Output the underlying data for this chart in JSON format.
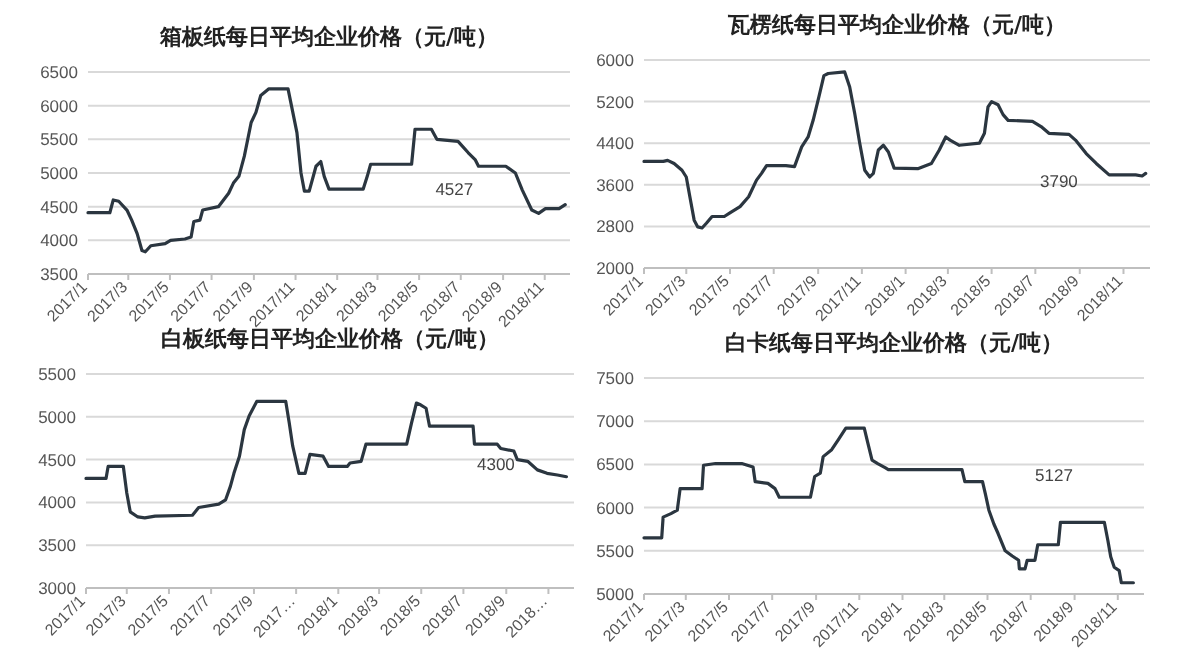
{
  "chart_data": [
    {
      "type": "line",
      "title": "箱板纸每日平均企业价格（元/吨）",
      "color": "#2b3640",
      "grid": "y",
      "ylim": [
        3500,
        6500
      ],
      "yticks": [
        3500,
        4000,
        4500,
        5000,
        5500,
        6000,
        6500
      ],
      "xlim": [
        "2017-01-01",
        "2018-12-08"
      ],
      "xticks": [
        {
          "value": "2017-01-01",
          "label": "2017/1"
        },
        {
          "value": "2017-03-01",
          "label": "2017/3"
        },
        {
          "value": "2017-05-01",
          "label": "2017/5"
        },
        {
          "value": "2017-07-01",
          "label": "2017/7"
        },
        {
          "value": "2017-09-01",
          "label": "2017/9"
        },
        {
          "value": "2017-11-01",
          "label": "2017/11"
        },
        {
          "value": "2018-01-01",
          "label": "2018/1"
        },
        {
          "value": "2018-03-01",
          "label": "2018/3"
        },
        {
          "value": "2018-05-01",
          "label": "2018/5"
        },
        {
          "value": "2018-07-01",
          "label": "2018/7"
        },
        {
          "value": "2018-09-01",
          "label": "2018/9"
        },
        {
          "value": "2018-11-01",
          "label": "2018/11"
        }
      ],
      "x": [
        "2017-01-01",
        "2017-02-02",
        "2017-02-07",
        "2017-02-15",
        "2017-02-27",
        "2017-03-06",
        "2017-03-14",
        "2017-03-21",
        "2017-03-26",
        "2017-04-03",
        "2017-04-24",
        "2017-05-02",
        "2017-05-23",
        "2017-06-01",
        "2017-06-05",
        "2017-06-14",
        "2017-06-18",
        "2017-07-11",
        "2017-07-26",
        "2017-08-02",
        "2017-08-10",
        "2017-08-18",
        "2017-08-28",
        "2017-09-04",
        "2017-09-11",
        "2017-09-23",
        "2017-10-21",
        "2017-10-28",
        "2017-11-03",
        "2017-11-09",
        "2017-11-14",
        "2017-11-21",
        "2017-12-01",
        "2017-12-08",
        "2017-12-13",
        "2017-12-20",
        "2018-02-08",
        "2018-02-14",
        "2018-02-19",
        "2018-04-20",
        "2018-04-25",
        "2018-05-19",
        "2018-05-27",
        "2018-06-27",
        "2018-07-12",
        "2018-07-22",
        "2018-07-27",
        "2018-09-05",
        "2018-09-19",
        "2018-09-29",
        "2018-10-13",
        "2018-10-23",
        "2018-11-02",
        "2018-11-22",
        "2018-12-01"
      ],
      "values": [
        4410,
        4410,
        4600,
        4580,
        4450,
        4300,
        4100,
        3850,
        3830,
        3920,
        3950,
        4000,
        4020,
        4050,
        4280,
        4300,
        4450,
        4500,
        4700,
        4850,
        4950,
        5250,
        5750,
        5900,
        6150,
        6250,
        6250,
        5900,
        5600,
        5000,
        4730,
        4730,
        5100,
        5170,
        4950,
        4760,
        4760,
        4950,
        5130,
        5130,
        5650,
        5650,
        5500,
        5470,
        5300,
        5200,
        5100,
        5100,
        5000,
        4750,
        4450,
        4400,
        4470,
        4470,
        4530
      ],
      "annotations": [
        "4527"
      ]
    },
    {
      "type": "line",
      "title": "瓦楞纸每日平均企业价格（元/吨）",
      "color": "#2b3640",
      "grid": "y",
      "ylim": [
        2000,
        6000
      ],
      "yticks": [
        2000,
        2800,
        3600,
        4400,
        5200,
        6000
      ],
      "xlim": [
        "2017-01-01",
        "2018-12-08"
      ],
      "xticks": [
        {
          "value": "2017-01-01",
          "label": "2017/1"
        },
        {
          "value": "2017-03-01",
          "label": "2017/3"
        },
        {
          "value": "2017-05-01",
          "label": "2017/5"
        },
        {
          "value": "2017-07-01",
          "label": "2017/7"
        },
        {
          "value": "2017-09-01",
          "label": "2017/9"
        },
        {
          "value": "2017-11-01",
          "label": "2017/11"
        },
        {
          "value": "2018-01-01",
          "label": "2018/1"
        },
        {
          "value": "2018-03-01",
          "label": "2018/3"
        },
        {
          "value": "2018-05-01",
          "label": "2018/5"
        },
        {
          "value": "2018-07-01",
          "label": "2018/7"
        },
        {
          "value": "2018-09-01",
          "label": "2018/9"
        },
        {
          "value": "2018-11-01",
          "label": "2018/11"
        }
      ],
      "x": [
        "2017-01-01",
        "2017-01-28",
        "2017-02-03",
        "2017-02-12",
        "2017-02-23",
        "2017-03-01",
        "2017-03-06",
        "2017-03-12",
        "2017-03-17",
        "2017-03-23",
        "2017-03-29",
        "2017-04-06",
        "2017-04-23",
        "2017-05-02",
        "2017-05-15",
        "2017-05-27",
        "2017-06-07",
        "2017-06-14",
        "2017-06-21",
        "2017-07-18",
        "2017-07-30",
        "2017-08-09",
        "2017-08-18",
        "2017-08-25",
        "2017-09-02",
        "2017-09-09",
        "2017-09-15",
        "2017-10-08",
        "2017-10-15",
        "2017-10-22",
        "2017-10-29",
        "2017-11-05",
        "2017-11-12",
        "2017-11-17",
        "2017-11-24",
        "2017-12-01",
        "2017-12-08",
        "2017-12-16",
        "2018-01-18",
        "2018-02-06",
        "2018-02-17",
        "2018-02-26",
        "2018-03-04",
        "2018-03-17",
        "2018-04-14",
        "2018-04-21",
        "2018-04-26",
        "2018-05-01",
        "2018-05-10",
        "2018-05-17",
        "2018-05-24",
        "2018-06-27",
        "2018-07-09",
        "2018-07-20",
        "2018-08-17",
        "2018-08-26",
        "2018-09-10",
        "2018-09-24",
        "2018-10-12",
        "2018-11-18",
        "2018-11-27",
        "2018-12-02"
      ],
      "values": [
        4050,
        4050,
        4070,
        4010,
        3880,
        3750,
        3370,
        2920,
        2790,
        2770,
        2860,
        2990,
        2990,
        3070,
        3180,
        3370,
        3690,
        3820,
        3970,
        3970,
        3950,
        4330,
        4520,
        4840,
        5290,
        5700,
        5740,
        5770,
        5480,
        4970,
        4400,
        3880,
        3750,
        3820,
        4270,
        4360,
        4230,
        3920,
        3910,
        4010,
        4270,
        4520,
        4460,
        4360,
        4400,
        4590,
        5100,
        5200,
        5140,
        4950,
        4840,
        4820,
        4720,
        4590,
        4570,
        4460,
        4200,
        4010,
        3790,
        3790,
        3770,
        3820
      ],
      "annotations": [
        "3790"
      ]
    },
    {
      "type": "line",
      "title": "白板纸每日平均企业价格（元/吨）",
      "color": "#2b3640",
      "grid": "y",
      "ylim": [
        3000,
        5500
      ],
      "yticks": [
        3000,
        3500,
        4000,
        4500,
        5000,
        5500
      ],
      "xlim": [
        "2017-01-01",
        "2018-12-08"
      ],
      "xticks": [
        {
          "value": "2017-01-01",
          "label": "2017/1"
        },
        {
          "value": "2017-03-01",
          "label": "2017/3"
        },
        {
          "value": "2017-05-01",
          "label": "2017/5"
        },
        {
          "value": "2017-07-01",
          "label": "2017/7"
        },
        {
          "value": "2017-09-01",
          "label": "2017/9"
        },
        {
          "value": "2017-11-01",
          "label": "2017…"
        },
        {
          "value": "2018-01-01",
          "label": "2018/1"
        },
        {
          "value": "2018-03-01",
          "label": "2018/3"
        },
        {
          "value": "2018-05-01",
          "label": "2018/5"
        },
        {
          "value": "2018-07-01",
          "label": "2018/7"
        },
        {
          "value": "2018-09-01",
          "label": "2018/9"
        },
        {
          "value": "2018-11-01",
          "label": "2018…"
        }
      ],
      "x": [
        "2017-01-01",
        "2017-01-30",
        "2017-02-02",
        "2017-02-24",
        "2017-03-01",
        "2017-03-06",
        "2017-03-17",
        "2017-03-27",
        "2017-04-11",
        "2017-06-04",
        "2017-06-13",
        "2017-07-12",
        "2017-07-22",
        "2017-07-29",
        "2017-08-03",
        "2017-08-11",
        "2017-08-18",
        "2017-08-25",
        "2017-09-05",
        "2017-10-17",
        "2017-10-22",
        "2017-10-27",
        "2017-11-05",
        "2017-11-14",
        "2017-11-21",
        "2017-12-10",
        "2017-12-18",
        "2018-01-14",
        "2018-01-18",
        "2018-02-03",
        "2018-02-10",
        "2018-04-10",
        "2018-04-17",
        "2018-04-24",
        "2018-04-30",
        "2018-05-08",
        "2018-05-13",
        "2018-07-15",
        "2018-07-17",
        "2018-08-19",
        "2018-08-24",
        "2018-09-12",
        "2018-09-17",
        "2018-10-02",
        "2018-10-16",
        "2018-10-30",
        "2018-11-14",
        "2018-11-27"
      ],
      "values": [
        4280,
        4280,
        4420,
        4420,
        4110,
        3890,
        3830,
        3820,
        3840,
        3850,
        3940,
        3980,
        4030,
        4190,
        4340,
        4540,
        4850,
        5010,
        5180,
        5180,
        4930,
        4660,
        4340,
        4340,
        4560,
        4540,
        4420,
        4420,
        4460,
        4480,
        4680,
        4680,
        4930,
        5160,
        5140,
        5100,
        4890,
        4890,
        4680,
        4680,
        4630,
        4600,
        4500,
        4480,
        4380,
        4340,
        4320,
        4300
      ],
      "annotations": [
        "4300"
      ]
    },
    {
      "type": "line",
      "title": "白卡纸每日平均企业价格（元/吨）",
      "color": "#2b3640",
      "grid": "y",
      "ylim": [
        5000,
        7500
      ],
      "yticks": [
        5000,
        5500,
        6000,
        6500,
        7000,
        7500
      ],
      "xlim": [
        "2017-01-01",
        "2018-12-08"
      ],
      "xticks": [
        {
          "value": "2017-01-01",
          "label": "2017/1"
        },
        {
          "value": "2017-03-01",
          "label": "2017/3"
        },
        {
          "value": "2017-05-01",
          "label": "2017/5"
        },
        {
          "value": "2017-07-01",
          "label": "2017/7"
        },
        {
          "value": "2017-09-01",
          "label": "2017/9"
        },
        {
          "value": "2017-11-01",
          "label": "2017/11"
        },
        {
          "value": "2018-01-01",
          "label": "2018/1"
        },
        {
          "value": "2018-03-01",
          "label": "2018/3"
        },
        {
          "value": "2018-05-01",
          "label": "2018/5"
        },
        {
          "value": "2018-07-01",
          "label": "2018/7"
        },
        {
          "value": "2018-09-01",
          "label": "2018/9"
        },
        {
          "value": "2018-11-01",
          "label": "2018/11"
        }
      ],
      "x": [
        "2017-01-01",
        "2017-01-26",
        "2017-01-28",
        "2017-02-08",
        "2017-02-17",
        "2017-02-21",
        "2017-03-24",
        "2017-03-26",
        "2017-04-12",
        "2017-05-19",
        "2017-06-04",
        "2017-06-07",
        "2017-06-25",
        "2017-07-05",
        "2017-07-11",
        "2017-08-24",
        "2017-08-30",
        "2017-09-07",
        "2017-09-11",
        "2017-09-23",
        "2017-10-02",
        "2017-10-13",
        "2017-11-08",
        "2017-11-13",
        "2017-11-19",
        "2017-11-27",
        "2017-12-08",
        "2017-12-12",
        "2018-03-26",
        "2018-03-30",
        "2018-04-24",
        "2018-04-28",
        "2018-05-03",
        "2018-05-10",
        "2018-05-16",
        "2018-05-26",
        "2018-06-05",
        "2018-06-14",
        "2018-06-15",
        "2018-06-23",
        "2018-06-26",
        "2018-07-07",
        "2018-07-11",
        "2018-08-09",
        "2018-08-12",
        "2018-10-13",
        "2018-10-18",
        "2018-10-22",
        "2018-10-27",
        "2018-11-03",
        "2018-11-06",
        "2018-11-23"
      ],
      "values": [
        5650,
        5650,
        5890,
        5930,
        5970,
        6220,
        6220,
        6490,
        6510,
        6510,
        6470,
        6300,
        6280,
        6220,
        6120,
        6120,
        6360,
        6400,
        6590,
        6670,
        6780,
        6920,
        6920,
        6750,
        6550,
        6510,
        6460,
        6440,
        6440,
        6300,
        6300,
        6160,
        5970,
        5810,
        5700,
        5500,
        5440,
        5390,
        5290,
        5290,
        5390,
        5390,
        5570,
        5570,
        5830,
        5830,
        5620,
        5430,
        5310,
        5270,
        5130,
        5130
      ],
      "annotations": [
        "5127"
      ]
    }
  ]
}
